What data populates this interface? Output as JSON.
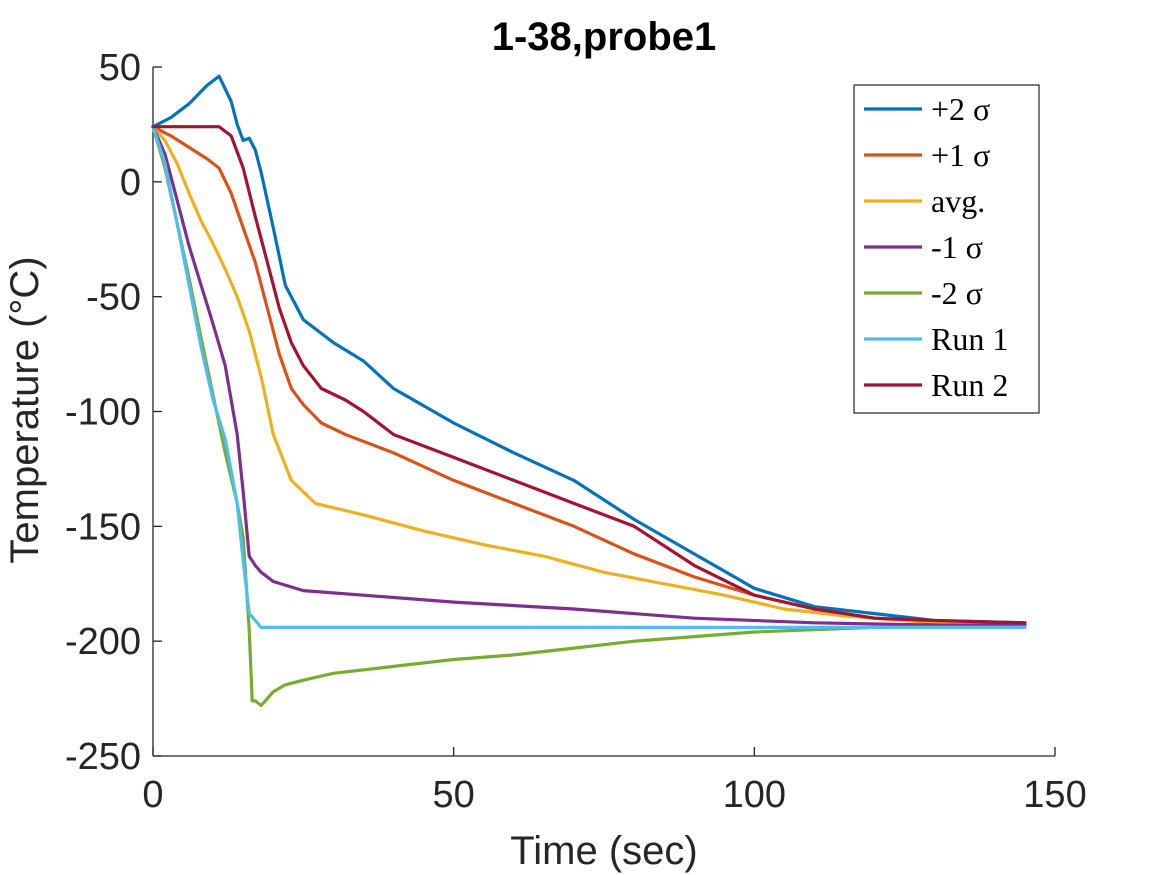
{
  "chart_data": {
    "type": "line",
    "title": "1-38,probe1",
    "xlabel": "Time (sec)",
    "ylabel": "Temperature (°C)",
    "xlim": [
      0,
      150
    ],
    "ylim": [
      -250,
      50
    ],
    "xticks": [
      0,
      50,
      100,
      150
    ],
    "yticks": [
      50,
      0,
      -50,
      -100,
      -150,
      -200,
      -250
    ],
    "grid": false,
    "legend_position": "top-right",
    "series": [
      {
        "name": "+2 σ",
        "color": "#0072BD",
        "x": [
          0,
          3,
          6,
          9,
          11,
          13,
          14,
          15,
          16,
          17,
          18,
          20,
          22,
          25,
          30,
          35,
          40,
          50,
          60,
          70,
          80,
          90,
          100,
          110,
          120,
          130,
          145
        ],
        "y": [
          24,
          28,
          34,
          42,
          46,
          35,
          25,
          18,
          19,
          14,
          4,
          -20,
          -45,
          -60,
          -70,
          -78,
          -90,
          -105,
          -118,
          -130,
          -147,
          -162,
          -177,
          -185,
          -188,
          -191,
          -192
        ]
      },
      {
        "name": "+1 σ",
        "color": "#D95319",
        "x": [
          0,
          3,
          6,
          9,
          11,
          13,
          15,
          17,
          19,
          21,
          23,
          25,
          28,
          32,
          40,
          50,
          60,
          70,
          80,
          90,
          100,
          110,
          120,
          130,
          145
        ],
        "y": [
          24,
          20,
          15,
          10,
          6,
          -5,
          -20,
          -35,
          -55,
          -75,
          -90,
          -97,
          -105,
          -110,
          -118,
          -130,
          -140,
          -150,
          -162,
          -172,
          -180,
          -186,
          -190,
          -192,
          -193
        ]
      },
      {
        "name": "avg.",
        "color": "#EDB120",
        "x": [
          0,
          2,
          4,
          6,
          8,
          10,
          12,
          14,
          16,
          18,
          20,
          23,
          27,
          35,
          45,
          55,
          65,
          75,
          85,
          95,
          105,
          115,
          125,
          135,
          145
        ],
        "y": [
          24,
          18,
          8,
          -5,
          -17,
          -27,
          -38,
          -50,
          -65,
          -85,
          -110,
          -130,
          -140,
          -145,
          -152,
          -158,
          -163,
          -170,
          -175,
          -180,
          -186,
          -189,
          -191,
          -192,
          -193
        ]
      },
      {
        "name": "-1 σ",
        "color": "#7E2F8E",
        "x": [
          0,
          2,
          4,
          6,
          8,
          10,
          12,
          14,
          15,
          16,
          17,
          18,
          20,
          25,
          35,
          50,
          70,
          90,
          110,
          130,
          145
        ],
        "y": [
          24,
          12,
          -8,
          -28,
          -45,
          -62,
          -80,
          -110,
          -135,
          -163,
          -167,
          -170,
          -174,
          -178,
          -180,
          -183,
          -186,
          -190,
          -192,
          -193,
          -193
        ]
      },
      {
        "name": "-2 σ",
        "color": "#77AC30",
        "x": [
          0,
          2,
          4,
          6,
          8,
          10,
          12,
          14,
          15,
          16,
          16.5,
          17,
          18,
          19,
          20,
          22,
          25,
          30,
          40,
          50,
          60,
          70,
          80,
          90,
          100,
          110,
          120,
          130,
          145
        ],
        "y": [
          24,
          6,
          -18,
          -42,
          -68,
          -93,
          -118,
          -140,
          -155,
          -195,
          -226,
          -226,
          -228,
          -225,
          -222,
          -219,
          -217,
          -214,
          -211,
          -208,
          -206,
          -203,
          -200,
          -198,
          -196,
          -195,
          -194,
          -194,
          -194
        ]
      },
      {
        "name": "Run 1",
        "color": "#4DBEEE",
        "x": [
          0,
          2,
          4,
          6,
          8,
          10,
          12,
          14,
          15,
          16,
          17,
          18,
          20,
          50,
          100,
          145
        ],
        "y": [
          24,
          8,
          -18,
          -45,
          -72,
          -95,
          -112,
          -140,
          -165,
          -188,
          -191,
          -194,
          -194,
          -194,
          -194,
          -194
        ]
      },
      {
        "name": "Run 2",
        "color": "#A2142F",
        "x": [
          0,
          4,
          8,
          11,
          13,
          15,
          17,
          19,
          21,
          23,
          25,
          28,
          32,
          35,
          40,
          50,
          60,
          70,
          80,
          90,
          100,
          110,
          120,
          130,
          145
        ],
        "y": [
          24,
          24,
          24,
          24,
          20,
          6,
          -15,
          -35,
          -55,
          -70,
          -80,
          -90,
          -95,
          -100,
          -110,
          -120,
          -130,
          -140,
          -150,
          -167,
          -180,
          -186,
          -190,
          -191,
          -192
        ]
      }
    ]
  }
}
